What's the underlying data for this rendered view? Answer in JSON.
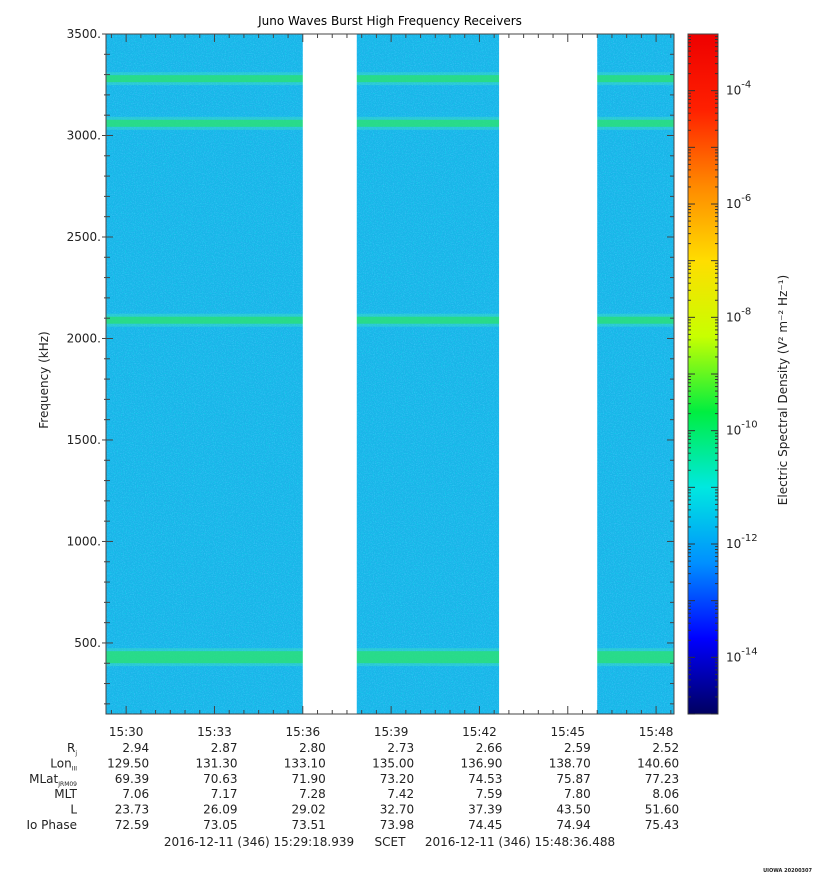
{
  "chart_data": {
    "type": "heatmap",
    "title": "Juno Waves Burst High Frequency Receivers",
    "ylabel": "Frequency (kHz)",
    "ylim": [
      150,
      3500
    ],
    "yticks": [
      {
        "value": 500,
        "label": "500."
      },
      {
        "value": 1000,
        "label": "1000."
      },
      {
        "value": 1500,
        "label": "1500."
      },
      {
        "value": 2000,
        "label": "2000."
      },
      {
        "value": 2500,
        "label": "2500."
      },
      {
        "value": 3000,
        "label": "3000."
      },
      {
        "value": 3500,
        "label": "3500."
      }
    ],
    "x_time_range": [
      "15:29:18.939",
      "15:48:36.488"
    ],
    "xticks": [
      "15:30",
      "15:33",
      "15:36",
      "15:39",
      "15:42",
      "15:45",
      "15:48"
    ],
    "data_gaps": [
      {
        "start": "15:36:00",
        "end": "15:37:50"
      },
      {
        "start": "15:42:40",
        "end": "15:46:00"
      }
    ],
    "emission_lines_khz": [
      430,
      2090,
      3060,
      3280
    ],
    "colorbar": {
      "label": "Electric Spectral Density (V² m⁻² Hz⁻¹)",
      "scale": "log",
      "range_exponent": [
        -15,
        -3
      ],
      "tick_exponents": [
        -14,
        -12,
        -10,
        -8,
        -6,
        -4
      ],
      "tick_labels": [
        "10-14",
        "10-12",
        "10-10",
        "10-8",
        "10-6",
        "10-4"
      ],
      "colors": [
        "#000060",
        "#0000ff",
        "#0090ff",
        "#00e8e0",
        "#00ee40",
        "#c8ff00",
        "#ffdd00",
        "#ff8800",
        "#ff2000",
        "#ee0000"
      ]
    },
    "ephemeris": {
      "labels": [
        "Rj",
        "LonIII",
        "MLatJRM09",
        "MLT",
        "L",
        "Io Phase"
      ],
      "rows": [
        [
          "2.94",
          "2.87",
          "2.80",
          "2.73",
          "2.66",
          "2.59",
          "2.52"
        ],
        [
          "129.50",
          "131.30",
          "133.10",
          "135.00",
          "136.90",
          "138.70",
          "140.60"
        ],
        [
          "69.39",
          "70.63",
          "71.90",
          "73.20",
          "74.53",
          "75.87",
          "77.23"
        ],
        [
          "7.06",
          "7.17",
          "7.28",
          "7.42",
          "7.59",
          "7.80",
          "8.06"
        ],
        [
          "23.73",
          "26.09",
          "29.02",
          "32.70",
          "37.39",
          "43.50",
          "51.60"
        ],
        [
          "72.59",
          "73.05",
          "73.51",
          "73.98",
          "74.45",
          "74.94",
          "75.43"
        ]
      ]
    }
  },
  "footer": {
    "start": "2016-12-11 (346) 15:29:18.939",
    "mid": "SCET",
    "end": "2016-12-11 (346) 15:48:36.488"
  },
  "credit": "UIOWA 20200307"
}
